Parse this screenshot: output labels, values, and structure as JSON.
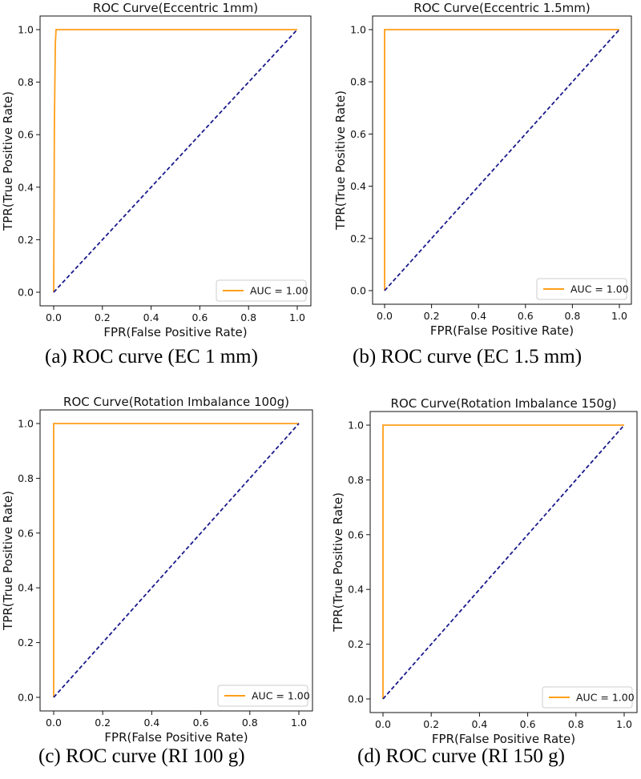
{
  "figure": {
    "captions": [
      "(a) ROC curve (EC 1 mm)",
      "(b) ROC curve (EC 1.5 mm)",
      "(c) ROC curve (RI 100 g)",
      "(d) ROC curve (RI 150 g)"
    ]
  },
  "colors": {
    "roc": "#ff9f1a",
    "chance": "#1a1a8c",
    "axis": "#111111"
  },
  "chart_data": [
    {
      "type": "line",
      "title": "ROC Curve(Eccentric 1mm)",
      "xlabel": "FPR(False Positive Rate)",
      "ylabel": "TPR(True Positive Rate)",
      "xlim": [
        0,
        1
      ],
      "ylim": [
        0,
        1
      ],
      "xticks": [
        "0.0",
        "0.2",
        "0.4",
        "0.6",
        "0.8",
        "1.0"
      ],
      "yticks": [
        "0.0",
        "0.2",
        "0.4",
        "0.6",
        "0.8",
        "1.0"
      ],
      "series": [
        {
          "name": "AUC = 1.00",
          "style": "solid",
          "color": "#ff9f1a",
          "x": [
            0.0,
            0.003,
            0.005,
            0.007,
            0.01,
            1.0
          ],
          "y": [
            0.0,
            0.65,
            0.8,
            0.95,
            1.0,
            1.0
          ]
        },
        {
          "style": "dashed",
          "color": "#1a1a8c",
          "x": [
            0,
            1
          ],
          "y": [
            0,
            1
          ]
        }
      ],
      "legend": {
        "position": "lower right",
        "entries": [
          "AUC = 1.00"
        ]
      },
      "grid": false
    },
    {
      "type": "line",
      "title": "ROC Curve(Eccentric 1.5mm)",
      "xlabel": "FPR(False Positive Rate)",
      "ylabel": "TPR(True Positive Rate)",
      "xlim": [
        0,
        1
      ],
      "ylim": [
        0,
        1
      ],
      "xticks": [
        "0.0",
        "0.2",
        "0.4",
        "0.6",
        "0.8",
        "1.0"
      ],
      "yticks": [
        "0.0",
        "0.2",
        "0.4",
        "0.6",
        "0.8",
        "1.0"
      ],
      "series": [
        {
          "name": "AUC = 1.00",
          "style": "solid",
          "color": "#ff9f1a",
          "x": [
            0.0,
            0.0,
            1.0
          ],
          "y": [
            0.0,
            1.0,
            1.0
          ]
        },
        {
          "style": "dashed",
          "color": "#1a1a8c",
          "x": [
            0,
            1
          ],
          "y": [
            0,
            1
          ]
        }
      ],
      "legend": {
        "position": "lower right",
        "entries": [
          "AUC = 1.00"
        ]
      },
      "grid": false
    },
    {
      "type": "line",
      "title": "ROC Curve(Rotation Imbalance 100g)",
      "xlabel": "FPR(False Positive Rate)",
      "ylabel": "TPR(True Positive Rate)",
      "xlim": [
        0,
        1
      ],
      "ylim": [
        0,
        1
      ],
      "xticks": [
        "0.0",
        "0.2",
        "0.4",
        "0.6",
        "0.8",
        "1.0"
      ],
      "yticks": [
        "0.0",
        "0.2",
        "0.4",
        "0.6",
        "0.8",
        "1.0"
      ],
      "series": [
        {
          "name": "AUC = 1.00",
          "style": "solid",
          "color": "#ff9f1a",
          "x": [
            0.0,
            0.0,
            1.0
          ],
          "y": [
            0.0,
            1.0,
            1.0
          ]
        },
        {
          "style": "dashed",
          "color": "#1a1a8c",
          "x": [
            0,
            1
          ],
          "y": [
            0,
            1
          ]
        }
      ],
      "legend": {
        "position": "lower right",
        "entries": [
          "AUC = 1.00"
        ]
      },
      "grid": false
    },
    {
      "type": "line",
      "title": "ROC Curve(Rotation Imbalance 150g)",
      "xlabel": "FPR(False Positive Rate)",
      "ylabel": "TPR(True Positive Rate)",
      "xlim": [
        0,
        1
      ],
      "ylim": [
        0,
        1
      ],
      "xticks": [
        "0.0",
        "0.2",
        "0.4",
        "0.6",
        "0.8",
        "1.0"
      ],
      "yticks": [
        "0.0",
        "0.2",
        "0.4",
        "0.6",
        "0.8",
        "1.0"
      ],
      "series": [
        {
          "name": "AUC = 1.00",
          "style": "solid",
          "color": "#ff9f1a",
          "x": [
            0.0,
            0.0,
            1.0
          ],
          "y": [
            0.0,
            1.0,
            1.0
          ]
        },
        {
          "style": "dashed",
          "color": "#1a1a8c",
          "x": [
            0,
            1
          ],
          "y": [
            0,
            1
          ]
        }
      ],
      "legend": {
        "position": "lower right",
        "entries": [
          "AUC = 1.00"
        ]
      },
      "grid": false
    }
  ]
}
